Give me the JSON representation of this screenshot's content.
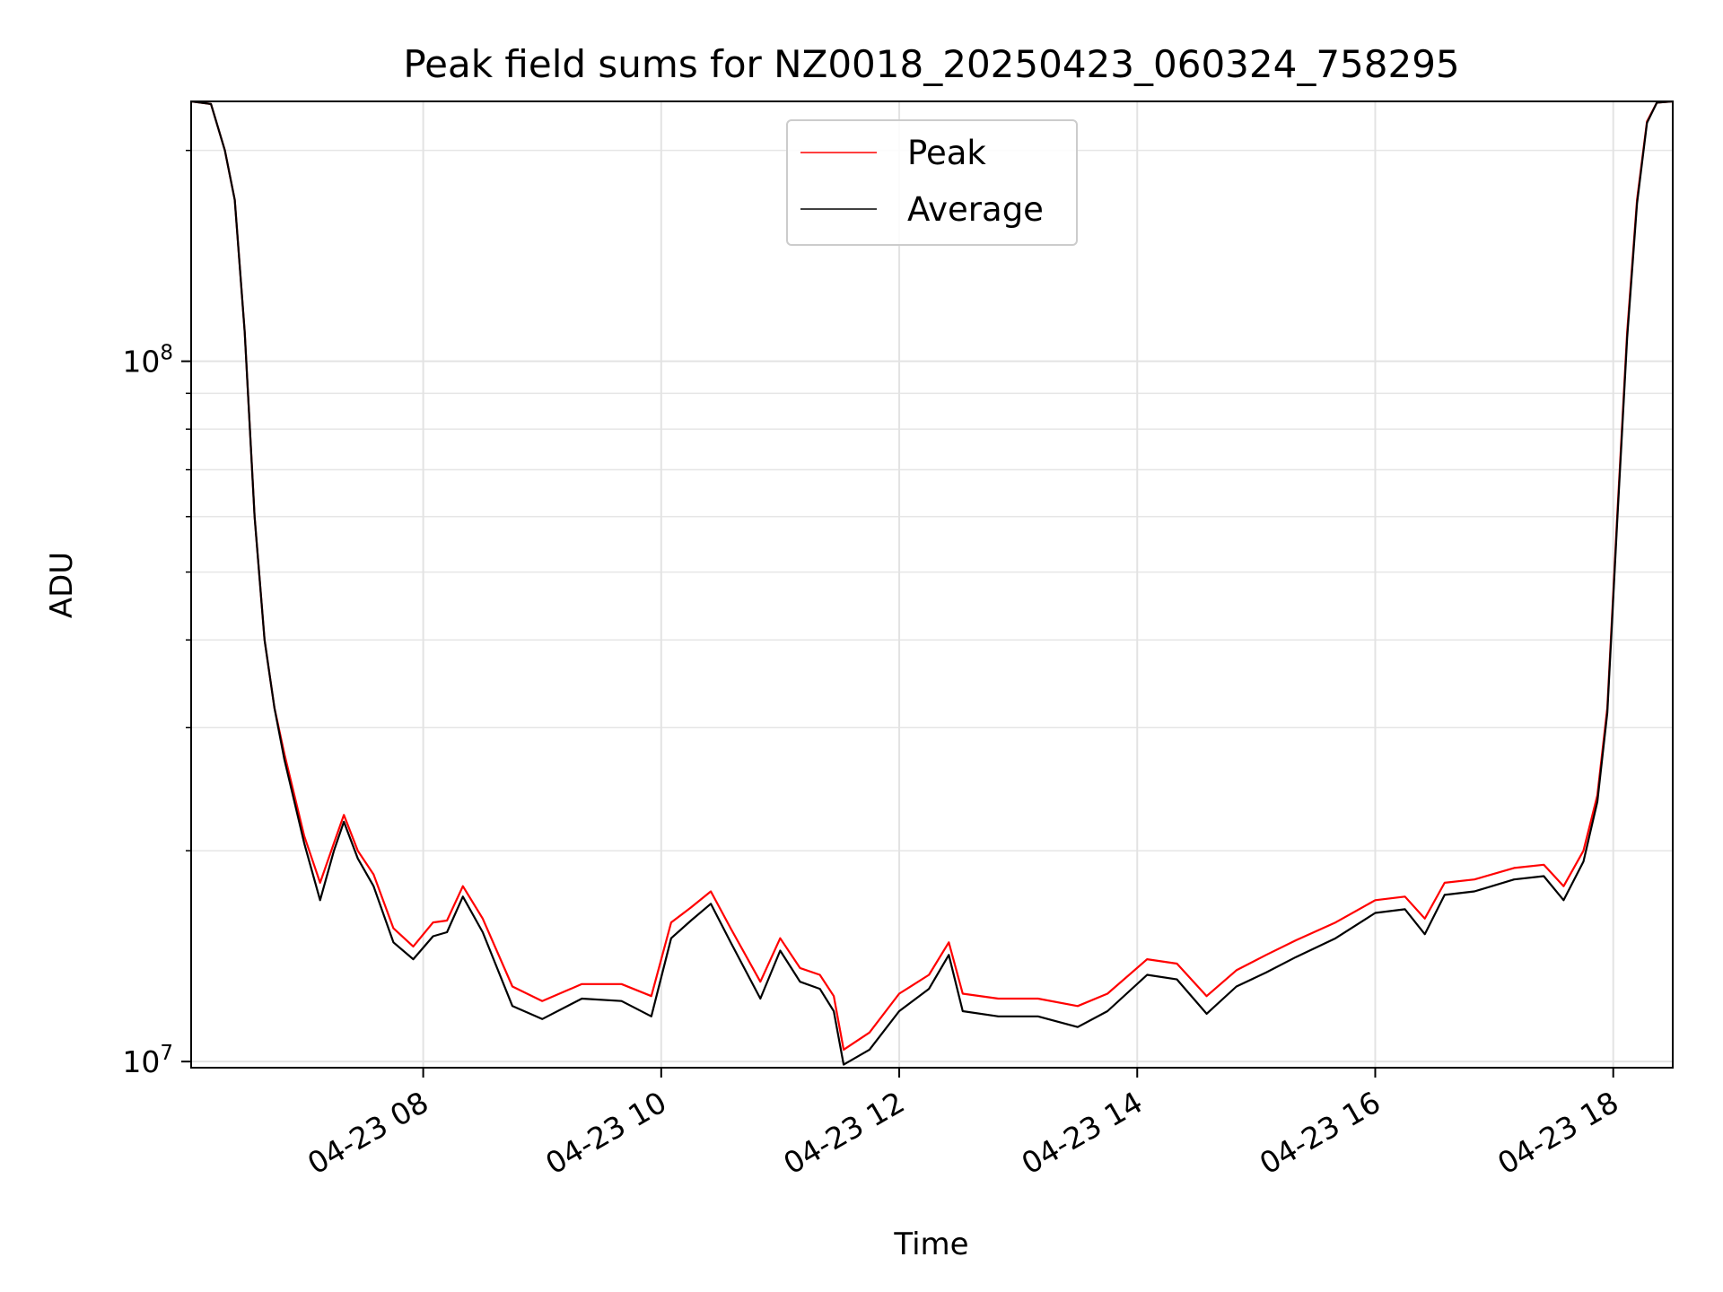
{
  "chart_data": {
    "type": "line",
    "title": "Peak field sums for NZ0018_20250423_060324_758295",
    "xlabel": "Time",
    "ylabel": "ADU",
    "x_range": [
      "04-23 06:03",
      "04-23 18:30"
    ],
    "ylim": [
      9800000,
      235000000
    ],
    "y_scale": "log",
    "grid": true,
    "x_ticks": [
      "04-23 08",
      "04-23 10",
      "04-23 12",
      "04-23 14",
      "04-23 16",
      "04-23 18"
    ],
    "y_ticks": [
      {
        "value": 10000000,
        "base": "10",
        "exp": "7"
      },
      {
        "value": 100000000,
        "base": "10",
        "exp": "8"
      }
    ],
    "legend": {
      "position": "top-center",
      "entries": [
        "Peak",
        "Average"
      ]
    },
    "series": [
      {
        "name": "Peak",
        "color": "#ff0000",
        "points": [
          [
            "04-23 06:03",
            235000000
          ],
          [
            "04-23 06:13",
            233000000
          ],
          [
            "04-23 06:20",
            200000000
          ],
          [
            "04-23 06:25",
            170000000
          ],
          [
            "04-23 06:30",
            110000000
          ],
          [
            "04-23 06:35",
            60000000
          ],
          [
            "04-23 06:40",
            40000000
          ],
          [
            "04-23 06:45",
            32000000
          ],
          [
            "04-23 06:50",
            27500000
          ],
          [
            "04-23 07:00",
            21000000
          ],
          [
            "04-23 07:08",
            18000000
          ],
          [
            "04-23 07:15",
            20500000
          ],
          [
            "04-23 07:20",
            22500000
          ],
          [
            "04-23 07:27",
            20000000
          ],
          [
            "04-23 07:35",
            18500000
          ],
          [
            "04-23 07:45",
            15500000
          ],
          [
            "04-23 07:55",
            14600000
          ],
          [
            "04-23 08:05",
            15800000
          ],
          [
            "04-23 08:12",
            15900000
          ],
          [
            "04-23 08:20",
            17800000
          ],
          [
            "04-23 08:30",
            16000000
          ],
          [
            "04-23 08:45",
            12800000
          ],
          [
            "04-23 09:00",
            12200000
          ],
          [
            "04-23 09:20",
            12900000
          ],
          [
            "04-23 09:40",
            12900000
          ],
          [
            "04-23 09:55",
            12400000
          ],
          [
            "04-23 10:05",
            15800000
          ],
          [
            "04-23 10:15",
            16600000
          ],
          [
            "04-23 10:25",
            17500000
          ],
          [
            "04-23 10:35",
            15500000
          ],
          [
            "04-23 10:50",
            13000000
          ],
          [
            "04-23 11:00",
            15000000
          ],
          [
            "04-23 11:10",
            13600000
          ],
          [
            "04-23 11:20",
            13300000
          ],
          [
            "04-23 11:27",
            12400000
          ],
          [
            "04-23 11:32",
            10400000
          ],
          [
            "04-23 11:45",
            11000000
          ],
          [
            "04-23 12:00",
            12500000
          ],
          [
            "04-23 12:15",
            13300000
          ],
          [
            "04-23 12:25",
            14800000
          ],
          [
            "04-23 12:32",
            12500000
          ],
          [
            "04-23 12:50",
            12300000
          ],
          [
            "04-23 13:10",
            12300000
          ],
          [
            "04-23 13:30",
            12000000
          ],
          [
            "04-23 13:45",
            12500000
          ],
          [
            "04-23 14:05",
            14000000
          ],
          [
            "04-23 14:20",
            13800000
          ],
          [
            "04-23 14:35",
            12400000
          ],
          [
            "04-23 14:50",
            13500000
          ],
          [
            "04-23 15:05",
            14200000
          ],
          [
            "04-23 15:20",
            14900000
          ],
          [
            "04-23 15:40",
            15800000
          ],
          [
            "04-23 16:00",
            17000000
          ],
          [
            "04-23 16:15",
            17200000
          ],
          [
            "04-23 16:25",
            16000000
          ],
          [
            "04-23 16:35",
            18000000
          ],
          [
            "04-23 16:50",
            18200000
          ],
          [
            "04-23 17:10",
            18900000
          ],
          [
            "04-23 17:25",
            19100000
          ],
          [
            "04-23 17:35",
            17800000
          ],
          [
            "04-23 17:45",
            20000000
          ],
          [
            "04-23 17:52",
            24000000
          ],
          [
            "04-23 17:57",
            32000000
          ],
          [
            "04-23 18:02",
            60000000
          ],
          [
            "04-23 18:07",
            110000000
          ],
          [
            "04-23 18:12",
            170000000
          ],
          [
            "04-23 18:17",
            220000000
          ],
          [
            "04-23 18:22",
            234000000
          ],
          [
            "04-23 18:30",
            235000000
          ]
        ]
      },
      {
        "name": "Average",
        "color": "#000000",
        "points": [
          [
            "04-23 06:03",
            235000000
          ],
          [
            "04-23 06:13",
            233000000
          ],
          [
            "04-23 06:20",
            200000000
          ],
          [
            "04-23 06:25",
            170000000
          ],
          [
            "04-23 06:30",
            110000000
          ],
          [
            "04-23 06:35",
            60000000
          ],
          [
            "04-23 06:40",
            40000000
          ],
          [
            "04-23 06:45",
            32000000
          ],
          [
            "04-23 06:50",
            27000000
          ],
          [
            "04-23 07:00",
            20500000
          ],
          [
            "04-23 07:08",
            17000000
          ],
          [
            "04-23 07:15",
            20000000
          ],
          [
            "04-23 07:20",
            22000000
          ],
          [
            "04-23 07:27",
            19500000
          ],
          [
            "04-23 07:35",
            17800000
          ],
          [
            "04-23 07:45",
            14800000
          ],
          [
            "04-23 07:55",
            14000000
          ],
          [
            "04-23 08:05",
            15100000
          ],
          [
            "04-23 08:12",
            15300000
          ],
          [
            "04-23 08:20",
            17200000
          ],
          [
            "04-23 08:30",
            15300000
          ],
          [
            "04-23 08:45",
            12000000
          ],
          [
            "04-23 09:00",
            11500000
          ],
          [
            "04-23 09:20",
            12300000
          ],
          [
            "04-23 09:40",
            12200000
          ],
          [
            "04-23 09:55",
            11600000
          ],
          [
            "04-23 10:05",
            15000000
          ],
          [
            "04-23 10:15",
            15900000
          ],
          [
            "04-23 10:25",
            16800000
          ],
          [
            "04-23 10:35",
            14800000
          ],
          [
            "04-23 10:50",
            12300000
          ],
          [
            "04-23 11:00",
            14400000
          ],
          [
            "04-23 11:10",
            13000000
          ],
          [
            "04-23 11:20",
            12700000
          ],
          [
            "04-23 11:27",
            11800000
          ],
          [
            "04-23 11:32",
            9900000
          ],
          [
            "04-23 11:45",
            10400000
          ],
          [
            "04-23 12:00",
            11800000
          ],
          [
            "04-23 12:15",
            12700000
          ],
          [
            "04-23 12:25",
            14200000
          ],
          [
            "04-23 12:32",
            11800000
          ],
          [
            "04-23 12:50",
            11600000
          ],
          [
            "04-23 13:10",
            11600000
          ],
          [
            "04-23 13:30",
            11200000
          ],
          [
            "04-23 13:45",
            11800000
          ],
          [
            "04-23 14:05",
            13300000
          ],
          [
            "04-23 14:20",
            13100000
          ],
          [
            "04-23 14:35",
            11700000
          ],
          [
            "04-23 14:50",
            12800000
          ],
          [
            "04-23 15:05",
            13400000
          ],
          [
            "04-23 15:20",
            14100000
          ],
          [
            "04-23 15:40",
            15000000
          ],
          [
            "04-23 16:00",
            16300000
          ],
          [
            "04-23 16:15",
            16500000
          ],
          [
            "04-23 16:25",
            15200000
          ],
          [
            "04-23 16:35",
            17300000
          ],
          [
            "04-23 16:50",
            17500000
          ],
          [
            "04-23 17:10",
            18200000
          ],
          [
            "04-23 17:25",
            18400000
          ],
          [
            "04-23 17:35",
            17000000
          ],
          [
            "04-23 17:45",
            19300000
          ],
          [
            "04-23 17:52",
            23500000
          ],
          [
            "04-23 17:57",
            31500000
          ],
          [
            "04-23 18:02",
            59000000
          ],
          [
            "04-23 18:07",
            108000000
          ],
          [
            "04-23 18:12",
            168000000
          ],
          [
            "04-23 18:17",
            219000000
          ],
          [
            "04-23 18:22",
            234000000
          ],
          [
            "04-23 18:30",
            235000000
          ]
        ]
      }
    ]
  }
}
